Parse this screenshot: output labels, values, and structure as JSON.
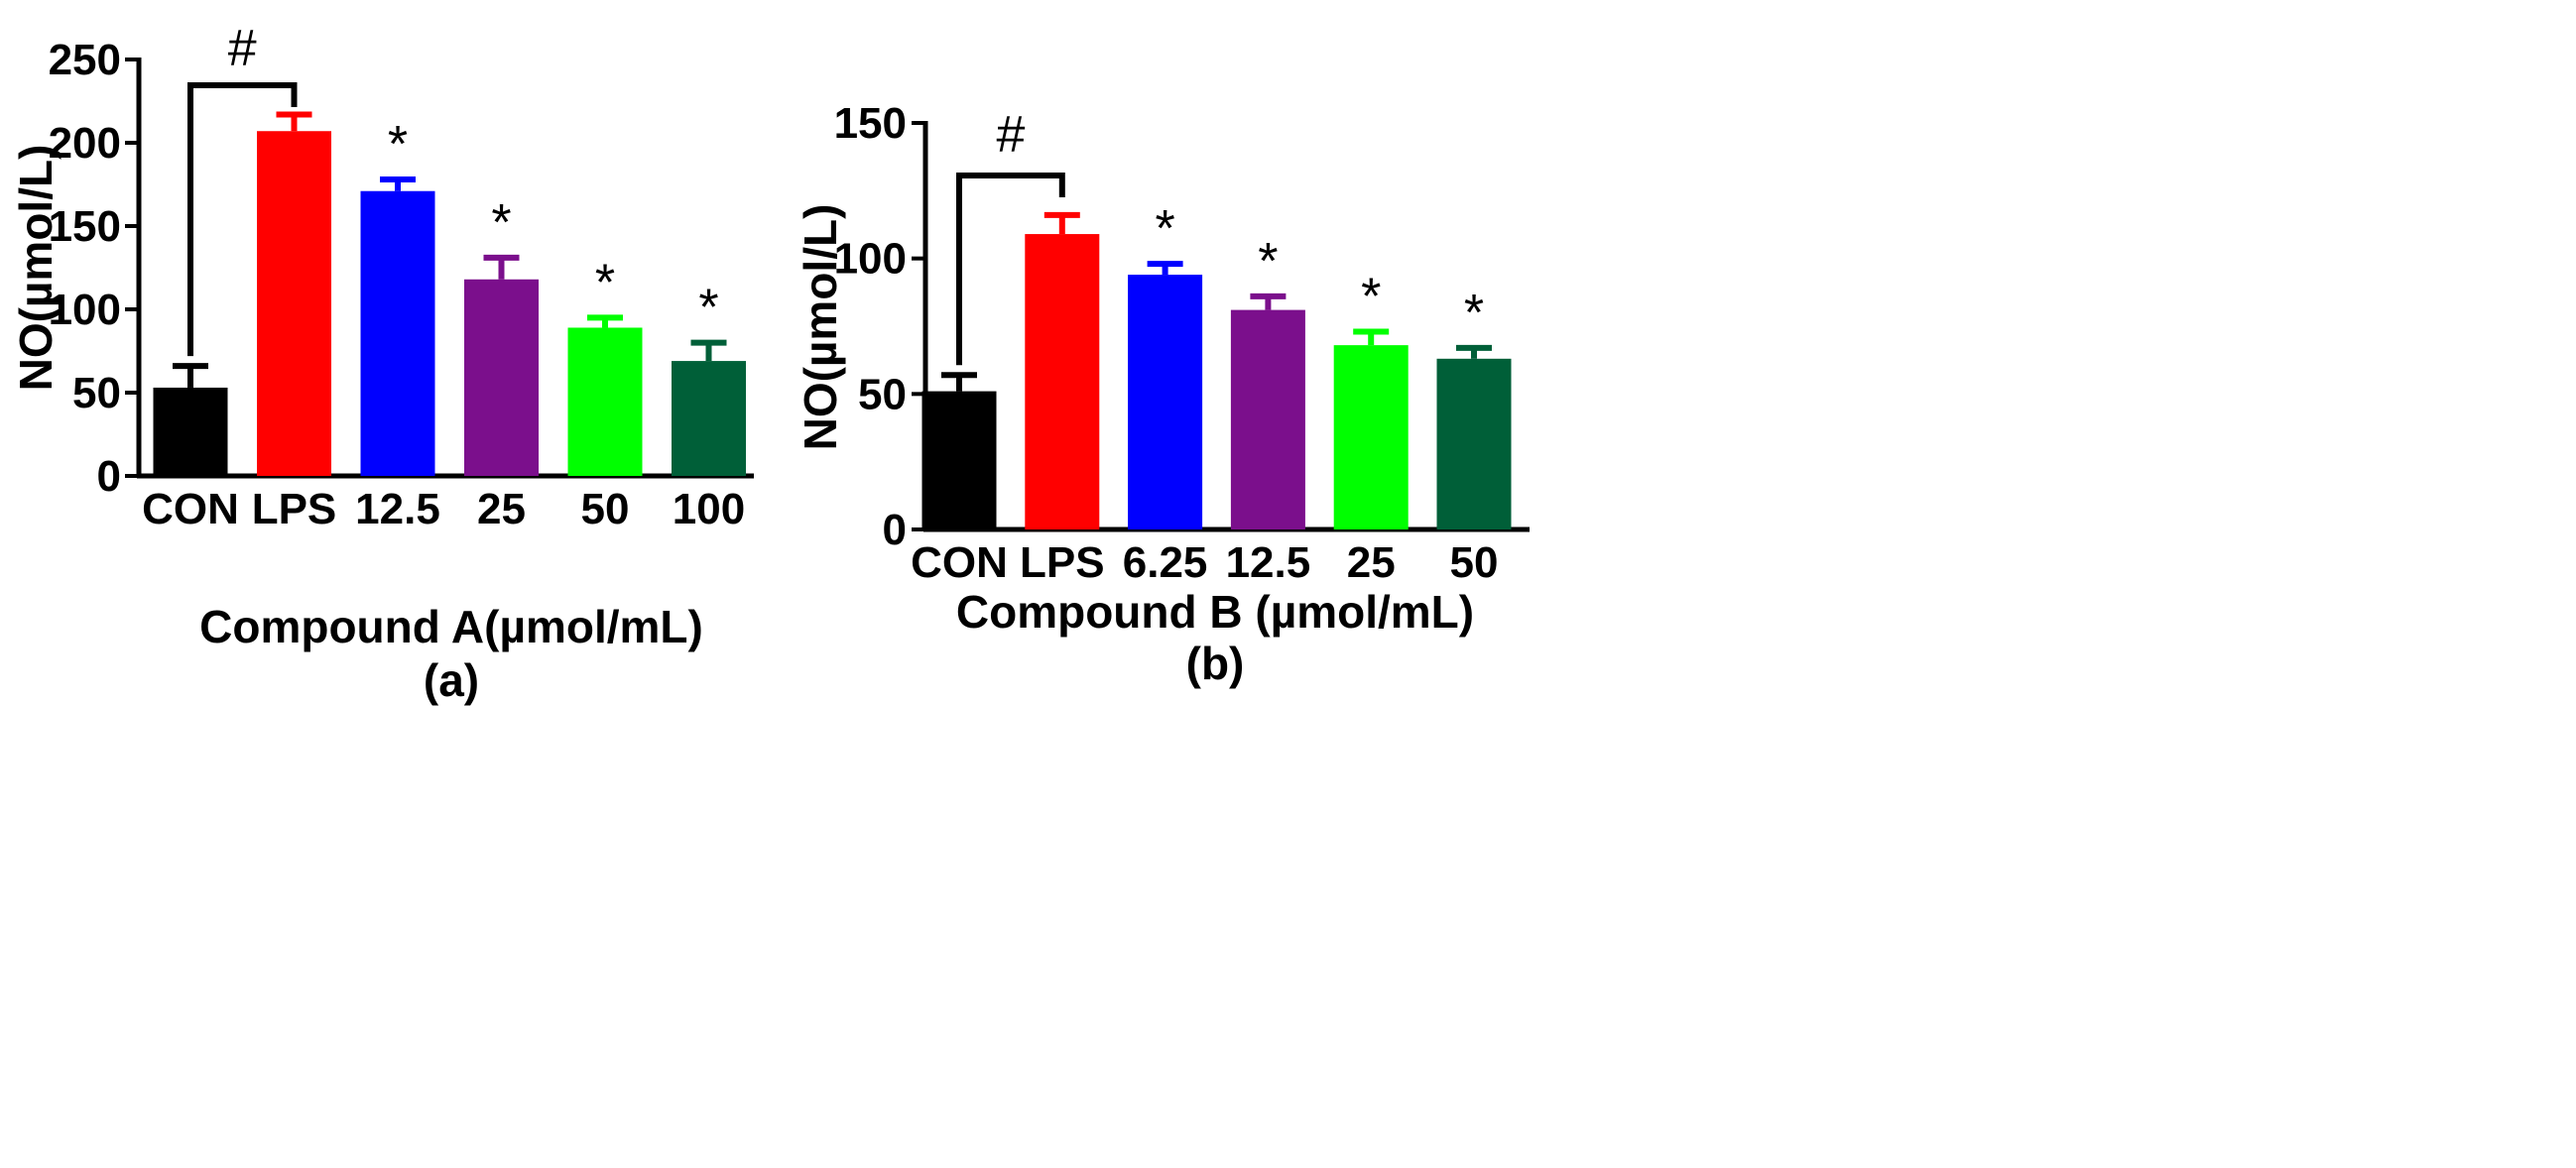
{
  "chart_data": [
    {
      "type": "bar",
      "panel_label": "(a)",
      "xlabel": "Compound A(µmol/mL)",
      "ylabel": "NO(µmol/L)",
      "ylim": [
        0,
        250
      ],
      "yticks": [
        0,
        50,
        100,
        150,
        200,
        250
      ],
      "categories": [
        "CON",
        "LPS",
        "12.5",
        "25",
        "50",
        "100"
      ],
      "values": [
        53,
        207,
        171,
        118,
        89,
        69
      ],
      "errors": [
        13,
        10,
        7,
        13,
        6,
        11
      ],
      "colors": [
        "#000000",
        "#ff0000",
        "#0000ff",
        "#7b0f8c",
        "#00ff00",
        "#005f38"
      ],
      "significance": [
        "",
        "",
        "*",
        "*",
        "*",
        "*"
      ],
      "bracket": {
        "from": "CON",
        "to": "LPS",
        "label": "#"
      }
    },
    {
      "type": "bar",
      "panel_label": "(b)",
      "xlabel": "Compound B (µmol/mL)",
      "ylabel": "NO(µmol/L)",
      "ylim": [
        0,
        150
      ],
      "yticks": [
        0,
        50,
        100,
        150
      ],
      "categories": [
        "CON",
        "LPS",
        "6.25",
        "12.5",
        "25",
        "50"
      ],
      "values": [
        51,
        109,
        94,
        81,
        68,
        63
      ],
      "errors": [
        6,
        7,
        4,
        5,
        5,
        4
      ],
      "colors": [
        "#000000",
        "#ff0000",
        "#0000ff",
        "#7b0f8c",
        "#00ff00",
        "#005f38"
      ],
      "significance": [
        "",
        "",
        "*",
        "*",
        "*",
        "*"
      ],
      "bracket": {
        "from": "CON",
        "to": "LPS",
        "label": "#"
      }
    }
  ]
}
